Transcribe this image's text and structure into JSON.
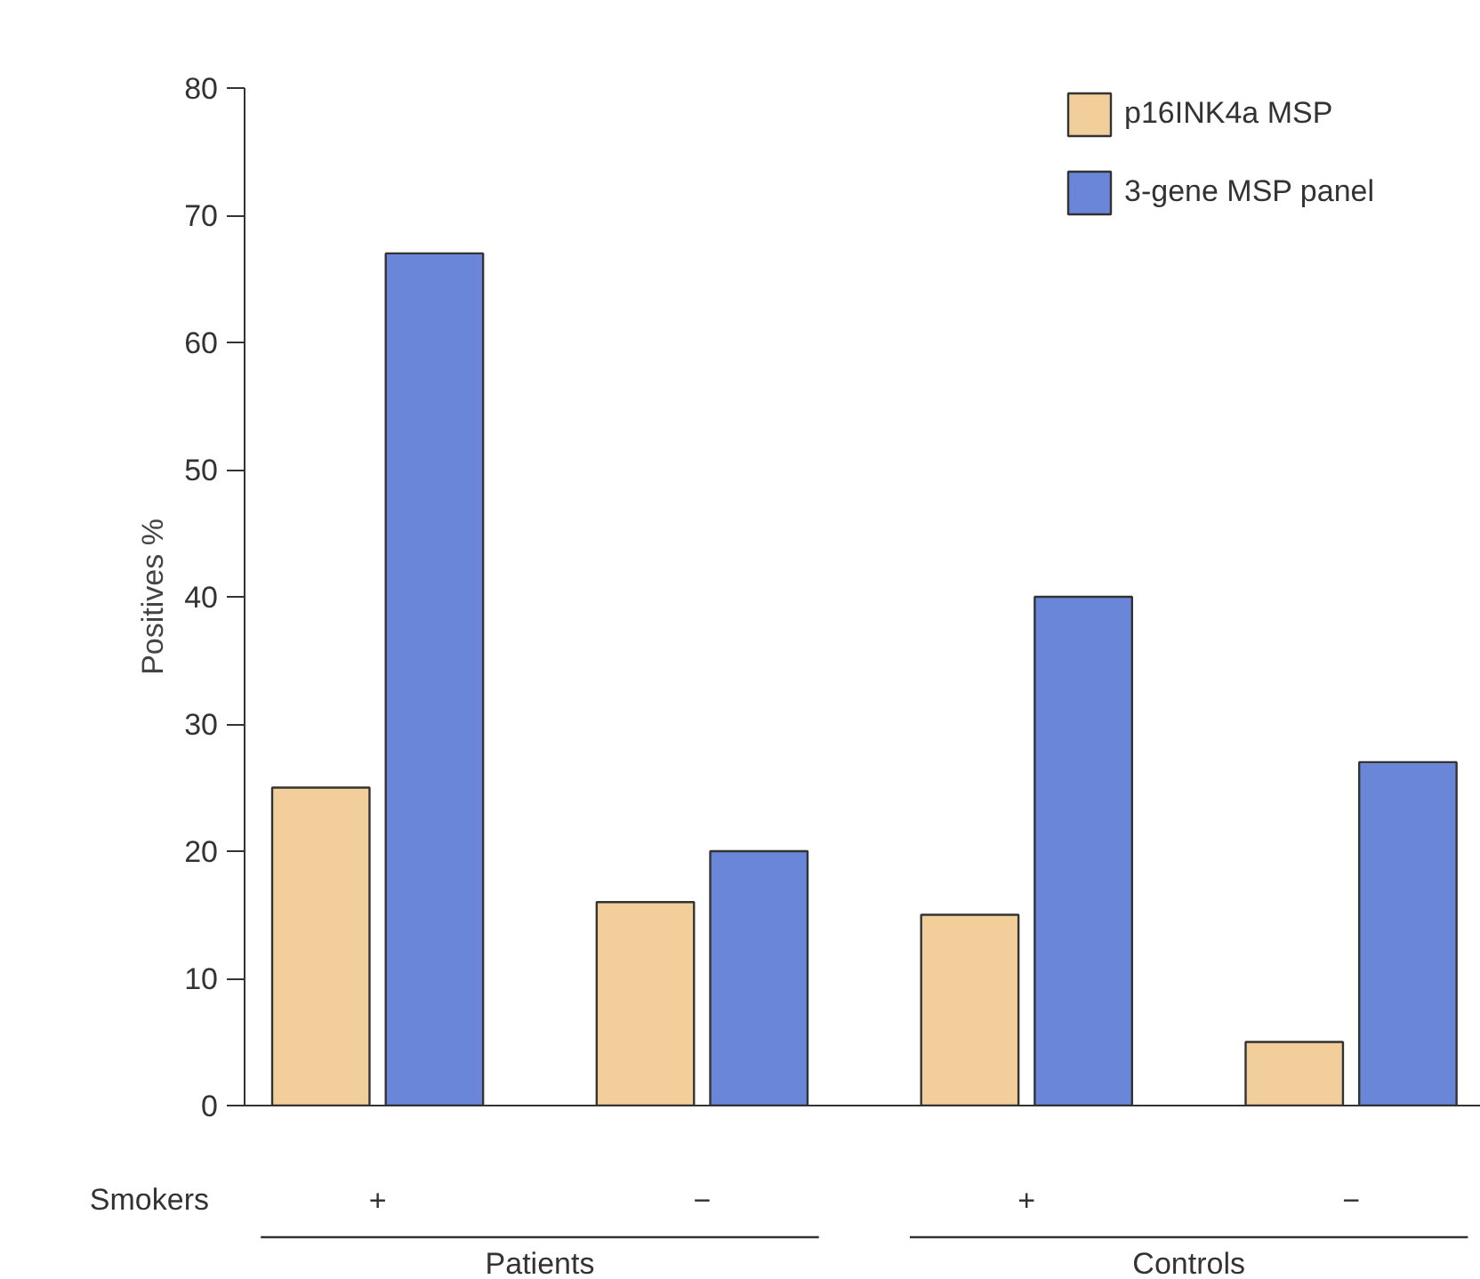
{
  "chart_data": {
    "type": "bar",
    "ylabel": "Positives %",
    "categories": [
      "+",
      "−",
      "+",
      "−"
    ],
    "series": [
      {
        "name": "p16INK4a MSP",
        "color": "#f2cf9a",
        "values": [
          25,
          16,
          15,
          5
        ]
      },
      {
        "name": "3-gene MSP panel",
        "color": "#6a86d8",
        "values": [
          67,
          20,
          40,
          27
        ]
      }
    ],
    "ylim": [
      0,
      80
    ],
    "yticks": [
      0,
      10,
      20,
      30,
      40,
      50,
      60,
      70,
      80
    ],
    "grid": false,
    "legend": "top right",
    "annotations": [
      "Smokers",
      "Patients",
      "Controls"
    ]
  }
}
